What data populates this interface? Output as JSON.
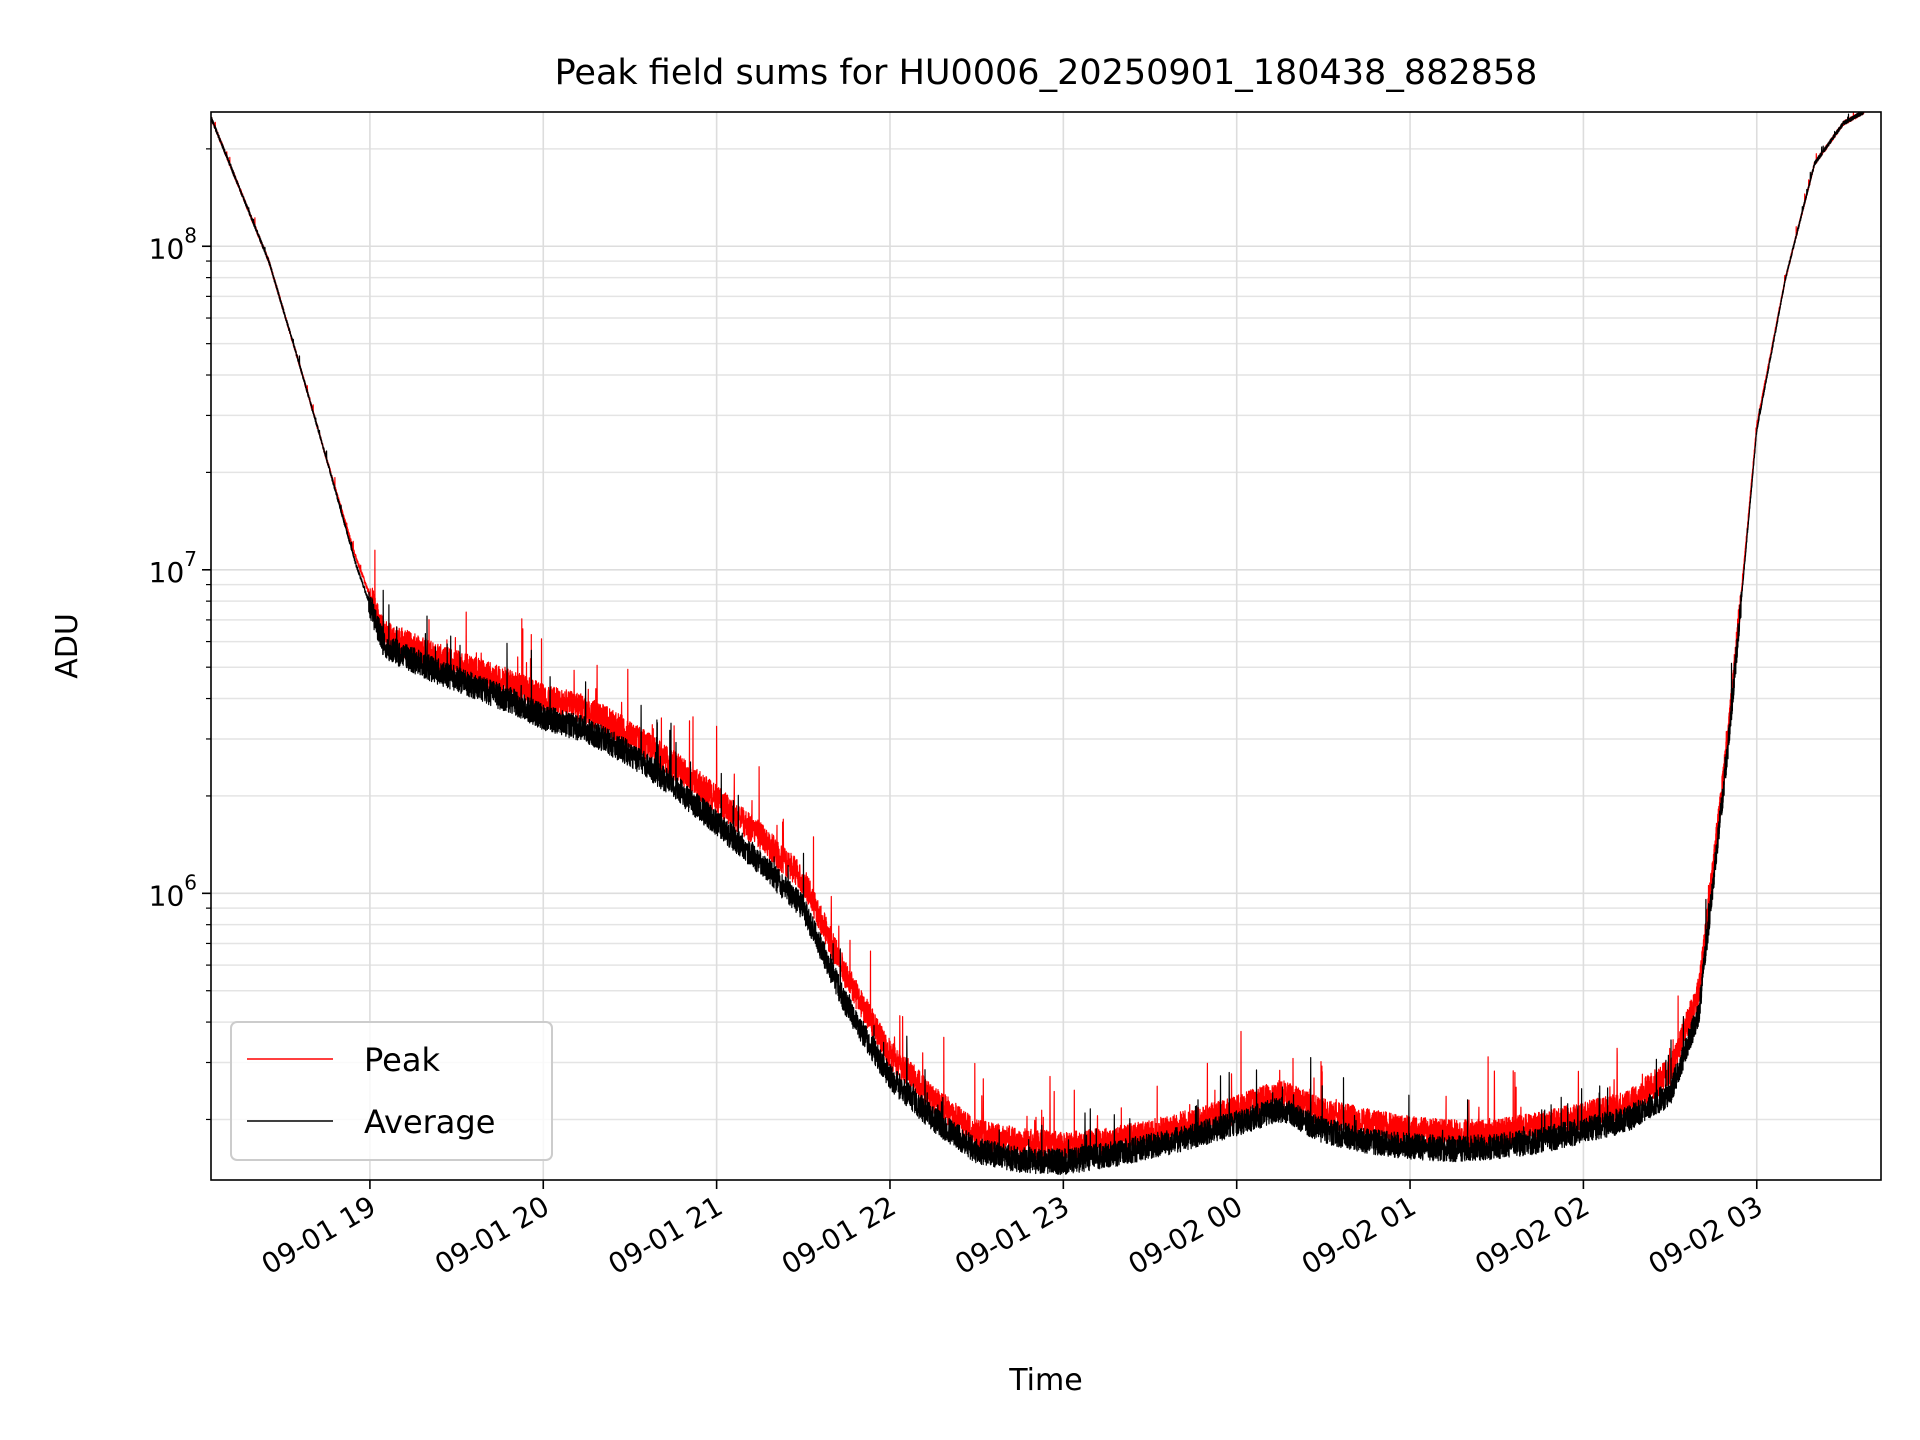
{
  "chart_data": {
    "type": "line",
    "title": "Peak field sums for HU0006_20250901_180438_882858",
    "xlabel": "Time",
    "ylabel": "ADU",
    "yscale": "log",
    "ylim": [
      130000,
      260000000
    ],
    "xlim": [
      "2025-09-01 18:05",
      "2025-09-02 03:43"
    ],
    "grid": true,
    "legend_location": "lower-left",
    "x_ticks": [
      {
        "value": "2025-09-01 19:00",
        "label": "09-01 19"
      },
      {
        "value": "2025-09-01 20:00",
        "label": "09-01 20"
      },
      {
        "value": "2025-09-01 21:00",
        "label": "09-01 21"
      },
      {
        "value": "2025-09-01 22:00",
        "label": "09-01 22"
      },
      {
        "value": "2025-09-01 23:00",
        "label": "09-01 23"
      },
      {
        "value": "2025-09-02 00:00",
        "label": "09-02 00"
      },
      {
        "value": "2025-09-02 01:00",
        "label": "09-02 01"
      },
      {
        "value": "2025-09-02 02:00",
        "label": "09-02 02"
      },
      {
        "value": "2025-09-02 03:00",
        "label": "09-02 03"
      }
    ],
    "y_ticks": [
      {
        "value": 1000000,
        "base": "10",
        "exp": "6"
      },
      {
        "value": 10000000,
        "base": "10",
        "exp": "7"
      },
      {
        "value": 100000000,
        "base": "10",
        "exp": "8"
      }
    ],
    "series": [
      {
        "name": "Peak",
        "color": "#ff0000",
        "x": [
          "2025-09-01 18:05",
          "2025-09-01 18:15",
          "2025-09-01 18:25",
          "2025-09-01 18:35",
          "2025-09-01 18:45",
          "2025-09-01 18:55",
          "2025-09-01 19:05",
          "2025-09-01 19:20",
          "2025-09-01 19:35",
          "2025-09-01 19:50",
          "2025-09-01 20:00",
          "2025-09-01 20:15",
          "2025-09-01 20:30",
          "2025-09-01 20:45",
          "2025-09-01 21:00",
          "2025-09-01 21:15",
          "2025-09-01 21:30",
          "2025-09-01 21:45",
          "2025-09-01 22:00",
          "2025-09-01 22:15",
          "2025-09-01 22:30",
          "2025-09-01 22:45",
          "2025-09-01 23:00",
          "2025-09-01 23:15",
          "2025-09-01 23:30",
          "2025-09-01 23:45",
          "2025-09-02 00:00",
          "2025-09-02 00:15",
          "2025-09-02 00:30",
          "2025-09-02 00:45",
          "2025-09-02 01:00",
          "2025-09-02 01:15",
          "2025-09-02 01:30",
          "2025-09-02 01:45",
          "2025-09-02 02:00",
          "2025-09-02 02:15",
          "2025-09-02 02:30",
          "2025-09-02 02:40",
          "2025-09-02 02:50",
          "2025-09-02 03:00",
          "2025-09-02 03:10",
          "2025-09-02 03:20",
          "2025-09-02 03:30",
          "2025-09-02 03:37"
        ],
        "values": [
          250000000,
          150000000,
          90000000,
          45000000,
          22000000,
          11000000,
          6300000,
          5500000,
          4900000,
          4400000,
          4000000,
          3700000,
          3100000,
          2500000,
          1950000,
          1500000,
          1100000,
          550000,
          320000,
          230000,
          180000,
          170000,
          165000,
          170000,
          180000,
          195000,
          215000,
          240000,
          210000,
          195000,
          185000,
          180000,
          182000,
          190000,
          205000,
          220000,
          280000,
          500000,
          3000000,
          28000000,
          80000000,
          180000000,
          240000000,
          260000000
        ]
      },
      {
        "name": "Average",
        "color": "#000000",
        "x": [
          "2025-09-01 18:05",
          "2025-09-01 18:15",
          "2025-09-01 18:25",
          "2025-09-01 18:35",
          "2025-09-01 18:45",
          "2025-09-01 18:55",
          "2025-09-01 19:05",
          "2025-09-01 19:20",
          "2025-09-01 19:35",
          "2025-09-01 19:50",
          "2025-09-01 20:00",
          "2025-09-01 20:15",
          "2025-09-01 20:30",
          "2025-09-01 20:45",
          "2025-09-01 21:00",
          "2025-09-01 21:15",
          "2025-09-01 21:30",
          "2025-09-01 21:45",
          "2025-09-01 22:00",
          "2025-09-01 22:15",
          "2025-09-01 22:30",
          "2025-09-01 22:45",
          "2025-09-01 23:00",
          "2025-09-01 23:15",
          "2025-09-01 23:30",
          "2025-09-01 23:45",
          "2025-09-02 00:00",
          "2025-09-02 00:15",
          "2025-09-02 00:30",
          "2025-09-02 00:45",
          "2025-09-02 01:00",
          "2025-09-02 01:15",
          "2025-09-02 01:30",
          "2025-09-02 01:45",
          "2025-09-02 02:00",
          "2025-09-02 02:15",
          "2025-09-02 02:30",
          "2025-09-02 02:40",
          "2025-09-02 02:50",
          "2025-09-02 03:00",
          "2025-09-02 03:10",
          "2025-09-02 03:20",
          "2025-09-02 03:30",
          "2025-09-02 03:37"
        ],
        "values": [
          250000000,
          150000000,
          90000000,
          45000000,
          22000000,
          10500000,
          5800000,
          5000000,
          4400000,
          3900000,
          3500000,
          3200000,
          2700000,
          2150000,
          1650000,
          1250000,
          900000,
          450000,
          270000,
          200000,
          160000,
          150000,
          148000,
          155000,
          165000,
          178000,
          195000,
          215000,
          185000,
          172000,
          165000,
          162000,
          165000,
          172000,
          185000,
          200000,
          240000,
          430000,
          2800000,
          27000000,
          80000000,
          180000000,
          240000000,
          260000000
        ]
      }
    ]
  }
}
